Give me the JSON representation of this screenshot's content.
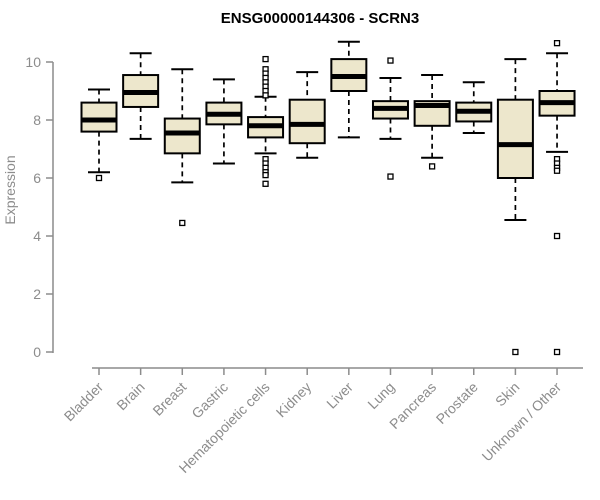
{
  "chart_data": {
    "type": "boxplot",
    "title": "ENSG00000144306 - SCRN3",
    "ylabel": "Expression",
    "xlabel": "",
    "ylim": [
      0,
      10.7
    ],
    "yticks": [
      0,
      2,
      4,
      6,
      8,
      10
    ],
    "grid": false,
    "legend": false,
    "categories": [
      "Bladder",
      "Brain",
      "Breast",
      "Gastric",
      "Hematopoietic cells",
      "Kidney",
      "Liver",
      "Lung",
      "Pancreas",
      "Prostate",
      "Skin",
      "Unknown / Other"
    ],
    "series": [
      {
        "category": "Bladder",
        "whisker_low": 6.2,
        "q1": 7.6,
        "median": 8.0,
        "q3": 8.6,
        "whisker_high": 9.05,
        "outliers": [
          6.0
        ]
      },
      {
        "category": "Brain",
        "whisker_low": 7.35,
        "q1": 8.45,
        "median": 8.95,
        "q3": 9.55,
        "whisker_high": 10.3,
        "outliers": []
      },
      {
        "category": "Breast",
        "whisker_low": 5.85,
        "q1": 6.85,
        "median": 7.55,
        "q3": 8.05,
        "whisker_high": 9.75,
        "outliers": [
          4.45
        ]
      },
      {
        "category": "Gastric",
        "whisker_low": 6.5,
        "q1": 7.85,
        "median": 8.2,
        "q3": 8.6,
        "whisker_high": 9.4,
        "outliers": []
      },
      {
        "category": "Hematopoietic cells",
        "whisker_low": 6.85,
        "q1": 7.4,
        "median": 7.8,
        "q3": 8.1,
        "whisker_high": 8.8,
        "outliers": [
          10.1,
          9.75,
          9.6,
          9.45,
          9.3,
          9.15,
          9.0,
          8.85,
          6.65,
          6.5,
          6.35,
          6.2,
          6.1,
          5.8
        ]
      },
      {
        "category": "Kidney",
        "whisker_low": 6.7,
        "q1": 7.2,
        "median": 7.85,
        "q3": 8.7,
        "whisker_high": 9.65,
        "outliers": []
      },
      {
        "category": "Liver",
        "whisker_low": 7.4,
        "q1": 9.0,
        "median": 9.5,
        "q3": 10.1,
        "whisker_high": 10.7,
        "outliers": []
      },
      {
        "category": "Lung",
        "whisker_low": 7.35,
        "q1": 8.05,
        "median": 8.4,
        "q3": 8.65,
        "whisker_high": 9.45,
        "outliers": [
          10.05,
          6.05
        ]
      },
      {
        "category": "Pancreas",
        "whisker_low": 6.7,
        "q1": 7.8,
        "median": 8.5,
        "q3": 8.65,
        "whisker_high": 9.55,
        "outliers": [
          6.4
        ]
      },
      {
        "category": "Prostate",
        "whisker_low": 7.55,
        "q1": 7.95,
        "median": 8.3,
        "q3": 8.6,
        "whisker_high": 9.3,
        "outliers": []
      },
      {
        "category": "Skin",
        "whisker_low": 4.55,
        "q1": 6.0,
        "median": 7.15,
        "q3": 8.7,
        "whisker_high": 10.1,
        "outliers": [
          0
        ]
      },
      {
        "category": "Unknown / Other",
        "whisker_low": 6.9,
        "q1": 8.15,
        "median": 8.6,
        "q3": 9.0,
        "whisker_high": 10.3,
        "outliers": [
          10.65,
          6.65,
          6.5,
          6.35,
          6.25,
          4.0,
          0
        ]
      }
    ],
    "colors": {
      "box_fill": "#EDE7CC",
      "box_stroke": "#000000",
      "median": "#000000",
      "axis": "#8C8C8C",
      "title": "#000000",
      "background": "#FFFFFF"
    }
  }
}
